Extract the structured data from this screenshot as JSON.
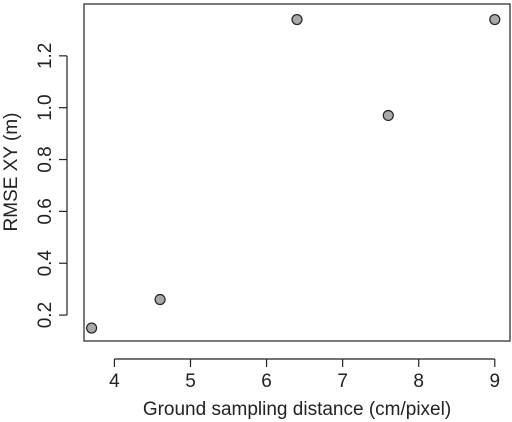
{
  "chart_data": {
    "type": "scatter",
    "title": "",
    "xlabel": "Ground sampling distance (cm/pixel)",
    "ylabel": "RMSE XY (m)",
    "xlim": [
      3.6,
      9.2
    ],
    "ylim": [
      0.1,
      1.4
    ],
    "xticks": [
      4,
      5,
      6,
      7,
      8,
      9
    ],
    "xtick_labels": [
      "4",
      "5",
      "6",
      "7",
      "8",
      "9"
    ],
    "yticks": [
      0.2,
      0.4,
      0.6,
      0.8,
      1.0,
      1.2
    ],
    "ytick_labels": [
      "0.2",
      "0.4",
      "0.6",
      "0.8",
      "1.0",
      "1.2"
    ],
    "grid": false,
    "point_fill": "#a8a8a8",
    "point_stroke": "#222222",
    "series": [
      {
        "x": [
          3.7,
          4.6,
          6.4,
          7.6,
          9.0
        ],
        "y": [
          0.15,
          0.26,
          1.34,
          0.97,
          1.34
        ]
      }
    ]
  }
}
